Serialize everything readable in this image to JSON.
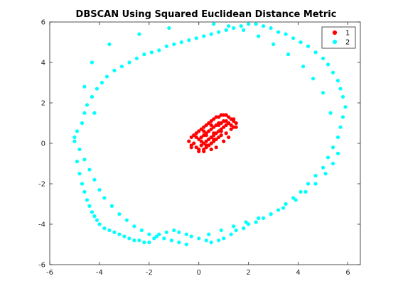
{
  "chart_data": {
    "type": "scatter",
    "title": "DBSCAN Using Squared Euclidean Distance Metric",
    "xlabel": "",
    "ylabel": "",
    "xlim": [
      -6,
      6.5
    ],
    "ylim": [
      -6,
      6
    ],
    "xticks": [
      -6,
      -4,
      -2,
      0,
      2,
      4,
      6
    ],
    "yticks": [
      -6,
      -4,
      -2,
      0,
      2,
      4,
      6
    ],
    "xtick_labels": [
      "-6",
      "-4",
      "-2",
      "0",
      "2",
      "4",
      "6"
    ],
    "ytick_labels": [
      "-6",
      "-4",
      "-2",
      "0",
      "2",
      "4",
      "6"
    ],
    "grid": false,
    "legend_position": "top-right",
    "series": [
      {
        "name": "1",
        "color": "#ff0000",
        "marker": "filled-dot",
        "x": [
          -0.4,
          -0.3,
          -0.3,
          -0.2,
          -0.2,
          -0.1,
          -0.1,
          0.0,
          0.0,
          0.0,
          0.1,
          0.1,
          0.1,
          0.2,
          0.2,
          0.2,
          0.2,
          0.3,
          0.3,
          0.3,
          0.3,
          0.4,
          0.4,
          0.4,
          0.4,
          0.5,
          0.5,
          0.5,
          0.5,
          0.6,
          0.6,
          0.6,
          0.6,
          0.7,
          0.7,
          0.7,
          0.7,
          0.8,
          0.8,
          0.8,
          0.8,
          0.9,
          0.9,
          0.9,
          1.0,
          1.0,
          1.0,
          1.1,
          1.1,
          1.1,
          1.2,
          1.2,
          1.3,
          1.3,
          1.4,
          1.4,
          1.4,
          1.5,
          1.5,
          -0.3,
          0.0,
          0.2,
          0.5,
          0.7,
          1.0,
          1.2,
          0.1,
          0.3,
          0.6,
          0.9,
          1.1,
          1.3,
          0.4,
          0.8,
          -0.1,
          0.2,
          0.5,
          0.3,
          0.6,
          0.9
        ],
        "y": [
          0.1,
          0.3,
          -0.1,
          0.4,
          0.0,
          0.5,
          -0.2,
          0.6,
          0.2,
          -0.3,
          0.7,
          0.3,
          -0.1,
          0.8,
          0.4,
          0.0,
          -0.3,
          0.9,
          0.5,
          0.1,
          -0.2,
          1.0,
          0.6,
          0.2,
          -0.1,
          1.1,
          0.7,
          0.3,
          0.0,
          1.2,
          0.8,
          0.4,
          0.1,
          1.3,
          0.9,
          0.5,
          0.2,
          1.3,
          1.0,
          0.6,
          0.3,
          1.4,
          1.0,
          0.7,
          1.4,
          1.1,
          0.8,
          1.4,
          1.1,
          0.9,
          1.3,
          1.0,
          1.2,
          0.9,
          1.1,
          0.8,
          1.2,
          1.0,
          0.8,
          -0.2,
          -0.4,
          -0.4,
          -0.3,
          -0.2,
          0.1,
          0.3,
          0.1,
          0.4,
          0.5,
          0.6,
          0.5,
          0.7,
          0.2,
          0.9,
          0.3,
          0.6,
          0.9,
          -0.1,
          0.2,
          0.4
        ]
      },
      {
        "name": "2",
        "color": "#00ffff",
        "marker": "filled-dot",
        "x": [
          -5.0,
          -4.9,
          -4.8,
          -4.7,
          -4.6,
          -4.5,
          -4.4,
          -4.3,
          -4.2,
          -4.1,
          -4.0,
          -3.8,
          -3.6,
          -3.4,
          -3.2,
          -3.0,
          -2.8,
          -2.6,
          -2.4,
          -2.2,
          -2.0,
          -1.8,
          -1.6,
          -1.3,
          -1.0,
          -0.8,
          -0.5,
          -0.3,
          0.0,
          0.3,
          0.5,
          0.8,
          1.0,
          1.3,
          1.5,
          1.8,
          2.0,
          2.3,
          2.6,
          2.9,
          3.2,
          3.5,
          3.8,
          4.1,
          4.4,
          4.7,
          5.0,
          5.2,
          5.4,
          5.6,
          5.7,
          5.8,
          5.9,
          5.8,
          5.7,
          5.6,
          5.4,
          5.2,
          5.0,
          4.7,
          4.4,
          4.1,
          3.8,
          3.5,
          3.2,
          2.9,
          2.6,
          2.3,
          2.0,
          1.7,
          1.4,
          1.1,
          0.8,
          0.5,
          0.2,
          -0.1,
          -0.4,
          -0.7,
          -1.0,
          -1.3,
          -1.6,
          -1.9,
          -2.2,
          -2.5,
          -2.8,
          -3.1,
          -3.4,
          -3.7,
          -3.9,
          -4.1,
          -4.3,
          -4.5,
          -4.6,
          -4.7,
          -4.9,
          -5.0,
          -4.8,
          -4.6,
          -4.4,
          -4.2,
          -4.0,
          -3.8,
          -3.5,
          -3.2,
          -2.9,
          -2.6,
          -2.3,
          -2.0,
          -1.7,
          -1.4,
          -1.1,
          -0.8,
          -0.5,
          0.4,
          0.9,
          1.4,
          1.9,
          2.4,
          2.9,
          3.4,
          3.9,
          4.3,
          4.7,
          5.1,
          5.4,
          5.6,
          5.3,
          5.0,
          4.6,
          4.2,
          3.6,
          3.0,
          2.4,
          1.8,
          1.2,
          0.6,
          -1.2,
          -2.4,
          -3.6,
          -4.3,
          -4.6,
          -4.2
        ],
        "y": [
          0.3,
          -0.9,
          -1.5,
          -2.0,
          -2.4,
          -2.8,
          -3.1,
          -3.4,
          -3.6,
          -3.8,
          -4.0,
          -4.2,
          -4.3,
          -4.4,
          -4.5,
          -4.6,
          -4.7,
          -4.8,
          -4.8,
          -4.9,
          -4.9,
          -4.7,
          -4.5,
          -4.4,
          -4.3,
          -4.4,
          -4.5,
          -4.6,
          -4.7,
          -4.8,
          -4.9,
          -4.8,
          -4.7,
          -4.5,
          -4.3,
          -4.2,
          -4.0,
          -3.9,
          -3.7,
          -3.5,
          -3.3,
          -3.0,
          -2.7,
          -2.4,
          -2.0,
          -1.6,
          -1.2,
          -0.7,
          -0.2,
          0.3,
          0.8,
          1.3,
          1.8,
          2.3,
          2.7,
          3.1,
          3.5,
          3.9,
          4.2,
          4.5,
          4.8,
          5.0,
          5.2,
          5.4,
          5.5,
          5.7,
          5.8,
          5.9,
          5.9,
          5.8,
          5.7,
          5.6,
          5.5,
          5.4,
          5.3,
          5.2,
          5.1,
          5.0,
          4.9,
          4.8,
          4.6,
          4.5,
          4.4,
          4.2,
          4.0,
          3.8,
          3.6,
          3.3,
          3.0,
          2.7,
          2.3,
          1.9,
          1.5,
          1.0,
          0.6,
          0.1,
          -0.3,
          -0.8,
          -1.3,
          -1.8,
          -2.3,
          -2.7,
          -3.1,
          -3.5,
          -3.8,
          -4.1,
          -4.3,
          -4.5,
          -4.6,
          -4.7,
          -4.8,
          -4.9,
          -5.0,
          -4.5,
          -4.3,
          -4.1,
          -3.9,
          -3.7,
          -3.5,
          -3.2,
          -2.8,
          -2.4,
          -2.0,
          -1.5,
          -1.0,
          -0.5,
          1.5,
          2.5,
          3.2,
          3.8,
          4.4,
          4.9,
          5.3,
          5.6,
          5.8,
          5.9,
          5.7,
          5.4,
          4.9,
          4.0,
          2.8,
          1.5
        ]
      }
    ]
  }
}
